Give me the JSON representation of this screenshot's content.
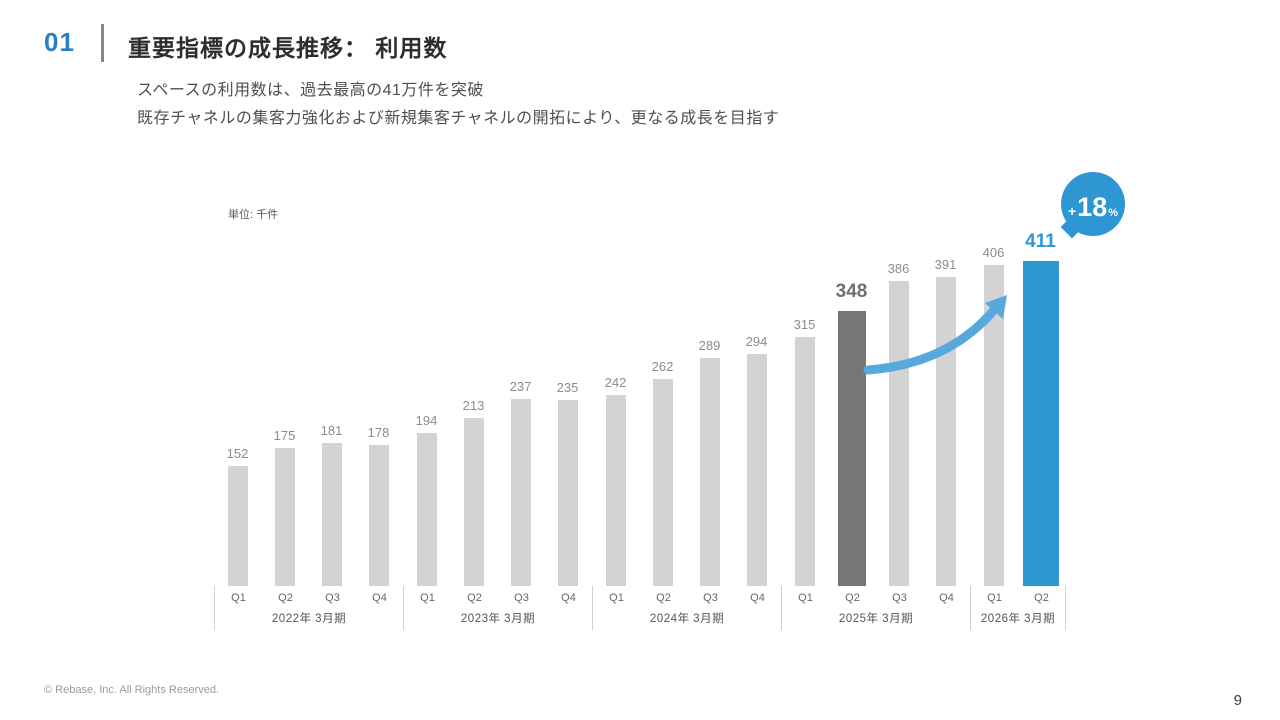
{
  "slide": {
    "section_number": "01",
    "title": "重要指標の成長推移： 利用数",
    "subtitle_line1": "スペースの利用数は、過去最高の41万件を突破",
    "subtitle_line2": "既存チャネルの集客力強化および新規集客チャネルの開拓により、更なる成長を目指す",
    "accent_color": "#2a80c4",
    "footer": "© Rebase, Inc. All Rights Reserved.",
    "page_number": "9"
  },
  "chart_data": {
    "type": "bar",
    "title": "重要指標の成長推移： 利用数",
    "unit_label": "単位: 千件",
    "categories": [
      "Q1",
      "Q2",
      "Q3",
      "Q4",
      "Q1",
      "Q2",
      "Q3",
      "Q4",
      "Q1",
      "Q2",
      "Q3",
      "Q4",
      "Q1",
      "Q2",
      "Q3",
      "Q4",
      "Q1",
      "Q2"
    ],
    "values": [
      152,
      175,
      181,
      178,
      194,
      213,
      237,
      235,
      242,
      262,
      289,
      294,
      315,
      348,
      386,
      391,
      406,
      411
    ],
    "groups": [
      {
        "label": "2022年 3月期",
        "count": 4
      },
      {
        "label": "2023年 3月期",
        "count": 4
      },
      {
        "label": "2024年 3月期",
        "count": 4
      },
      {
        "label": "2025年 3月期",
        "count": 4
      },
      {
        "label": "2026年 3月期",
        "count": 2
      }
    ],
    "emphasis_index": 13,
    "accent_index": 17,
    "ylim": [
      0,
      430
    ],
    "grid": false,
    "legend": false,
    "badge": {
      "plus": "+",
      "value": "18",
      "unit": "%"
    },
    "colors": {
      "bar_default": "#d3d3d3",
      "bar_emphasis": "#767676",
      "bar_accent": "#2e96d3",
      "arrow": "#56a8dd",
      "badge_bg": "#2e96d3"
    }
  }
}
